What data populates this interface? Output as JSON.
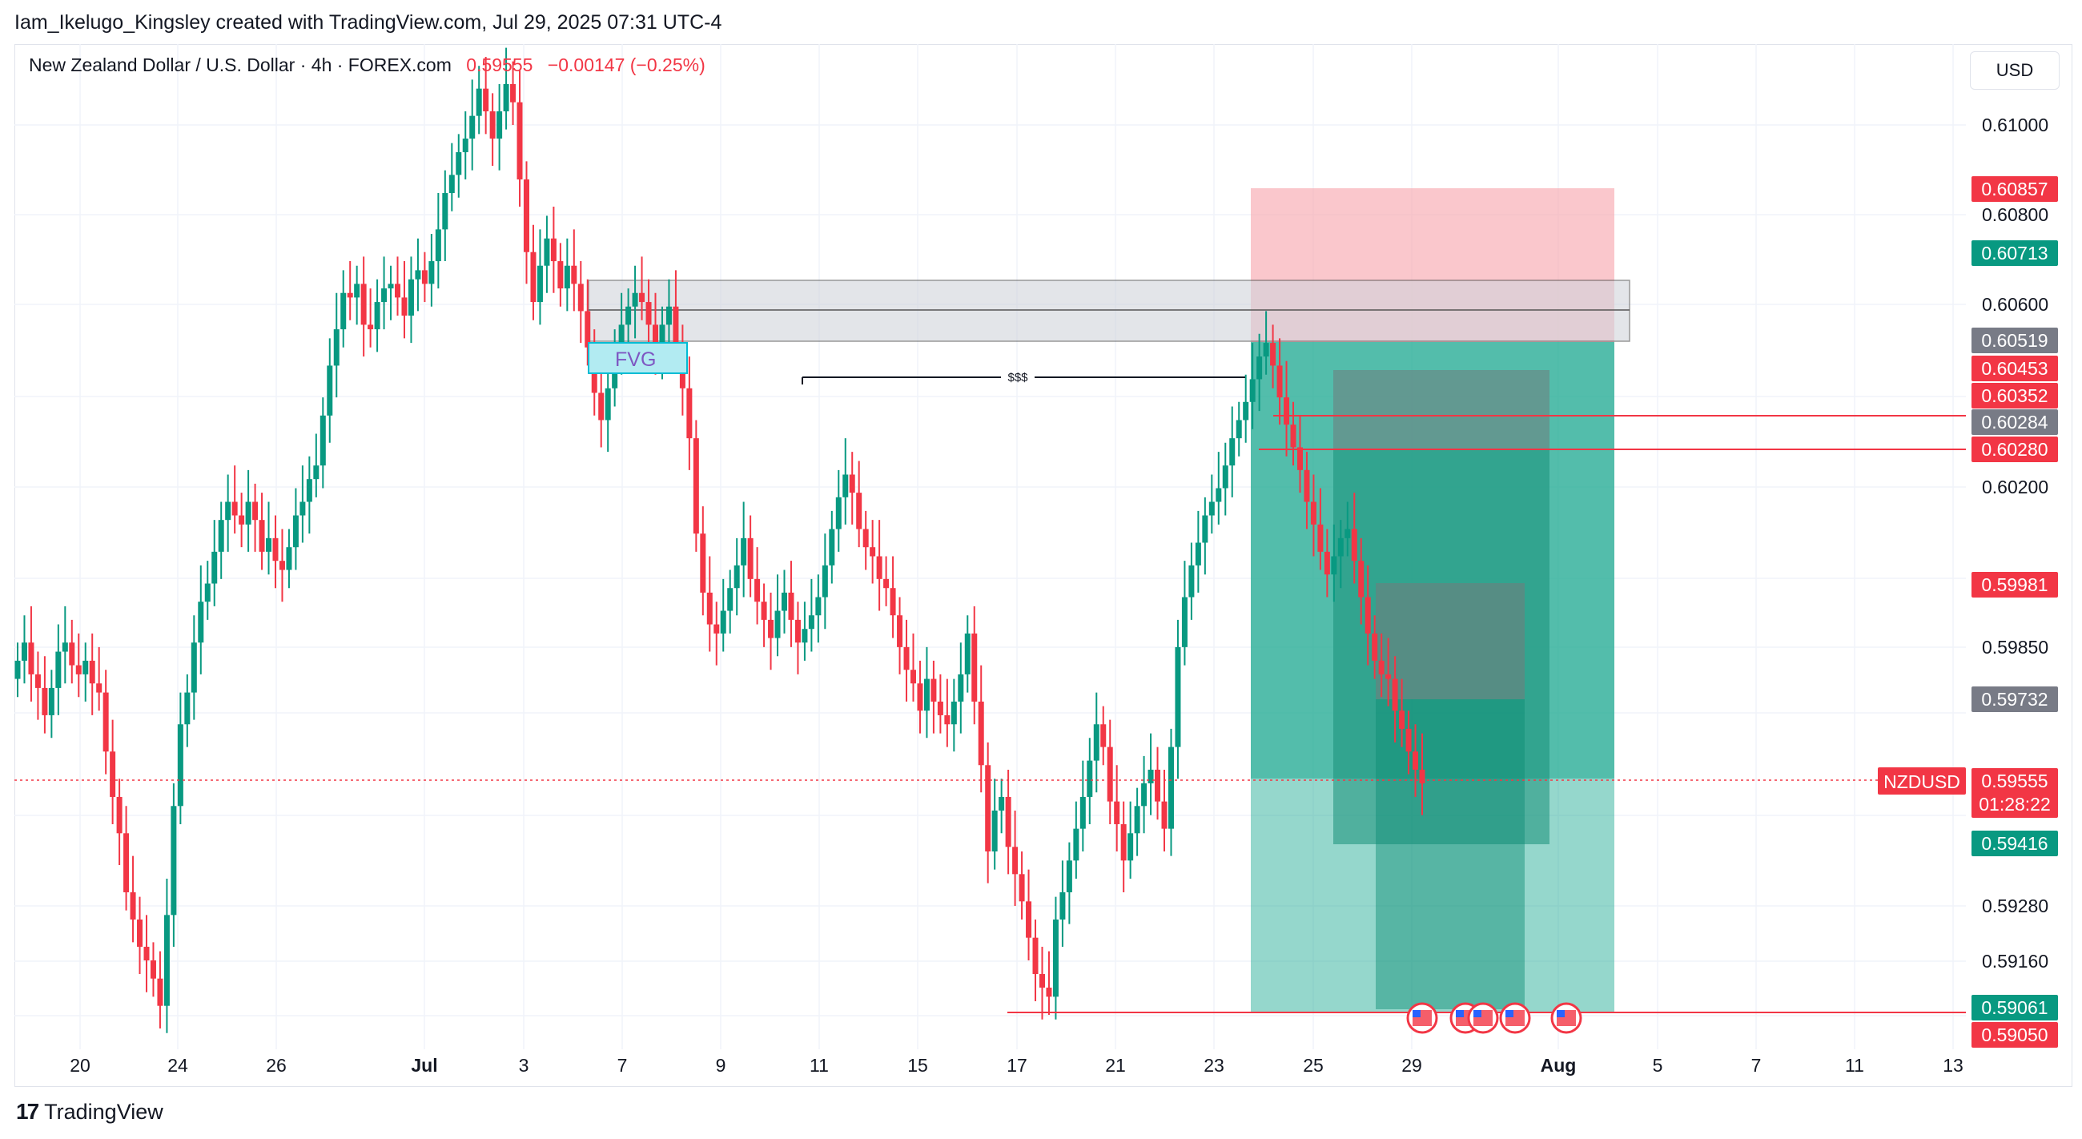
{
  "header": {
    "title": "Iam_Ikelugo_Kingsley created with TradingView.com, Jul 29, 2025 07:31 UTC-4"
  },
  "legend": {
    "symbol": "New Zealand Dollar / U.S. Dollar · 4h · FOREX.com",
    "price": "0.59555",
    "change": "−0.00147 (−0.25%)"
  },
  "currency": "USD",
  "footer": {
    "brand": "TradingView"
  },
  "colors": {
    "up": "#089981",
    "down": "#f23645",
    "grid": "#f0f3fa",
    "target_zone": "#22ab94",
    "stop_zone": "#f7a9b1",
    "supply_box": "#d1d4dc"
  },
  "chart_data": {
    "type": "candlestick",
    "symbol": "NZDUSD",
    "interval": "4h",
    "ylim": [
      0.5905,
      0.6117
    ],
    "y_ticks": [
      "0.61000",
      "0.60800",
      "0.60600",
      "0.60200",
      "0.59850",
      "0.59280",
      "0.59160"
    ],
    "x_ticks": [
      "20",
      "24",
      "26",
      "Jul",
      "3",
      "7",
      "9",
      "11",
      "15",
      "17",
      "21",
      "23",
      "25",
      "29",
      "Aug",
      "5",
      "7",
      "11",
      "13"
    ],
    "price_labels": [
      {
        "text": "0.60857",
        "kind": "red"
      },
      {
        "text": "0.60713",
        "kind": "green"
      },
      {
        "text": "0.60519",
        "kind": "grey"
      },
      {
        "text": "0.60453",
        "kind": "red"
      },
      {
        "text": "0.60352",
        "kind": "red"
      },
      {
        "text": "0.60284",
        "kind": "grey"
      },
      {
        "text": "0.60280",
        "kind": "red"
      },
      {
        "text": "0.59981",
        "kind": "red"
      },
      {
        "text": "0.59732",
        "kind": "grey"
      },
      {
        "text": "0.59555",
        "kind": "red",
        "countdown": "01:28:22"
      },
      {
        "text": "0.59416",
        "kind": "green"
      },
      {
        "text": "0.59061",
        "kind": "green"
      },
      {
        "text": "0.59050",
        "kind": "red"
      }
    ],
    "current_price_tag": "NZDUSD",
    "annotations": {
      "fvg_label": "FVG",
      "liquidity_label": "$$$"
    },
    "candles_approx": [
      0.5982,
      0.5986,
      0.5979,
      0.5976,
      0.597,
      0.5976,
      0.5984,
      0.5986,
      0.5981,
      0.5979,
      0.5982,
      0.5977,
      0.5975,
      0.5962,
      0.5952,
      0.5944,
      0.5931,
      0.5925,
      0.5919,
      0.5916,
      0.5912,
      0.5906,
      0.5926,
      0.595,
      0.5968,
      0.5975,
      0.5986,
      0.5995,
      0.5999,
      0.6006,
      0.6013,
      0.6017,
      0.6014,
      0.6012,
      0.6017,
      0.6013,
      0.6006,
      0.6009,
      0.6004,
      0.6002,
      0.6007,
      0.6014,
      0.6017,
      0.6022,
      0.6025,
      0.6036,
      0.6047,
      0.6055,
      0.6063,
      0.6062,
      0.6065,
      0.6056,
      0.6055,
      0.6061,
      0.6064,
      0.6065,
      0.6062,
      0.6058,
      0.6066,
      0.6068,
      0.6065,
      0.607,
      0.6077,
      0.6085,
      0.6089,
      0.6094,
      0.6097,
      0.6102,
      0.6108,
      0.6103,
      0.6097,
      0.6103,
      0.6109,
      0.6105,
      0.6088,
      0.6072,
      0.6061,
      0.6069,
      0.6075,
      0.607,
      0.6064,
      0.6069,
      0.6065,
      0.6059,
      0.6051,
      0.6041,
      0.6035,
      0.6042,
      0.605,
      0.6056,
      0.606,
      0.6063,
      0.6061,
      0.6056,
      0.6051,
      0.6056,
      0.606,
      0.6051,
      0.6042,
      0.6031,
      0.601,
      0.5997,
      0.599,
      0.5988,
      0.5993,
      0.5998,
      0.6003,
      0.6009,
      0.6,
      0.5995,
      0.5991,
      0.5987,
      0.5993,
      0.5997,
      0.5991,
      0.5986,
      0.5989,
      0.5992,
      0.5996,
      0.6003,
      0.6011,
      0.6018,
      0.6023,
      0.6019,
      0.6011,
      0.6007,
      0.6005,
      0.6,
      0.5998,
      0.5992,
      0.5985,
      0.598,
      0.5977,
      0.5971,
      0.5978,
      0.5973,
      0.597,
      0.5968,
      0.5973,
      0.5979,
      0.5988,
      0.5973,
      0.5959,
      0.594,
      0.5949,
      0.5952,
      0.5941,
      0.5935,
      0.5929,
      0.5921,
      0.5913,
      0.591,
      0.5908,
      0.5925,
      0.5931,
      0.5938,
      0.5945,
      0.5952,
      0.596,
      0.5968,
      0.5963,
      0.5951,
      0.5946,
      0.5938,
      0.5944,
      0.595,
      0.5955,
      0.5958,
      0.5951,
      0.5945,
      0.5963,
      0.5985,
      0.5996,
      0.6003,
      0.6008,
      0.6014,
      0.6017,
      0.602,
      0.6025,
      0.6031,
      0.6035,
      0.6039,
      0.6044,
      0.6049,
      0.6052,
      0.6047,
      0.604,
      0.6034,
      0.6029,
      0.6024,
      0.6017,
      0.6012,
      0.6006,
      0.6001,
      0.6005,
      0.6009,
      0.6011,
      0.6004,
      0.5996,
      0.5988,
      0.5982,
      0.5979,
      0.5978,
      0.5971,
      0.5967,
      0.5962,
      0.5958,
      0.5955
    ]
  }
}
